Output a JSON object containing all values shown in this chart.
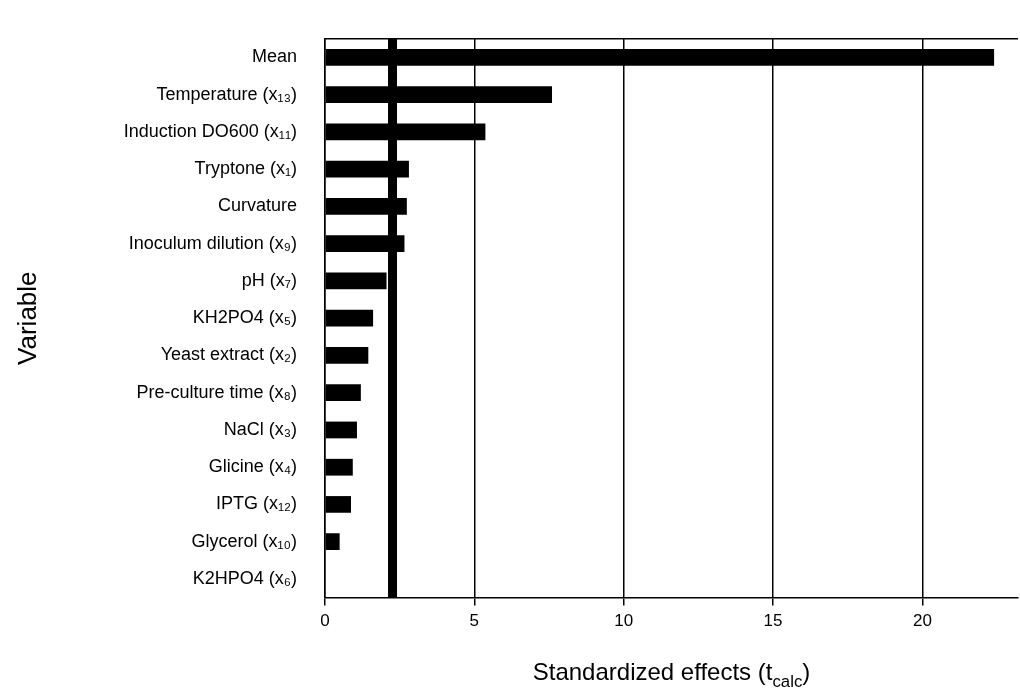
{
  "chart_data": {
    "type": "bar",
    "orientation": "horizontal",
    "categories": [
      "Mean",
      "Temperature (x₁₃)",
      "Induction DO600 (x₁₁)",
      "Tryptone (x₁)",
      "Curvature",
      "Inoculum dilution (x₉)",
      "pH (x₇)",
      "KH2PO4 (x₅)",
      "Yeast extract (x₂)",
      "Pre-culture time (x₈)",
      "NaCl (x₃)",
      "Glicine (x₄)",
      "IPTG (x₁₂)",
      "Glycerol (x₁₀)",
      "K2HPO4 (x₆)"
    ],
    "values": [
      22.4,
      7.6,
      5.37,
      2.81,
      2.74,
      2.66,
      2.06,
      1.61,
      1.45,
      1.2,
      1.07,
      0.93,
      0.87,
      0.49,
      0
    ],
    "color": "#000000",
    "xlim": [
      0,
      23.2
    ],
    "xticks": [
      0,
      5,
      10,
      15,
      20
    ],
    "xlabel": "Standardized effects (t$_{calc}$)",
    "ylabel": "Variable",
    "grid": "x",
    "ref_lines": [
      {
        "axis": "x",
        "value": 2.26,
        "color": "#000000"
      }
    ]
  }
}
